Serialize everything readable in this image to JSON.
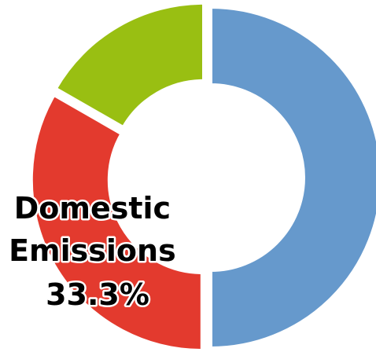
{
  "chart_data": {
    "type": "pie",
    "donut": true,
    "title": "",
    "categories": [
      "",
      "Domestic Emissions",
      ""
    ],
    "values": [
      50.0,
      33.3,
      16.7
    ],
    "colors": [
      "#6699cc",
      "#e33a2e",
      "#99bf12"
    ],
    "exploded": true,
    "legend": "none",
    "labels": [
      {
        "series_index": 1,
        "lines": [
          "Domestic",
          "Emissions",
          "33.3%"
        ]
      }
    ]
  }
}
